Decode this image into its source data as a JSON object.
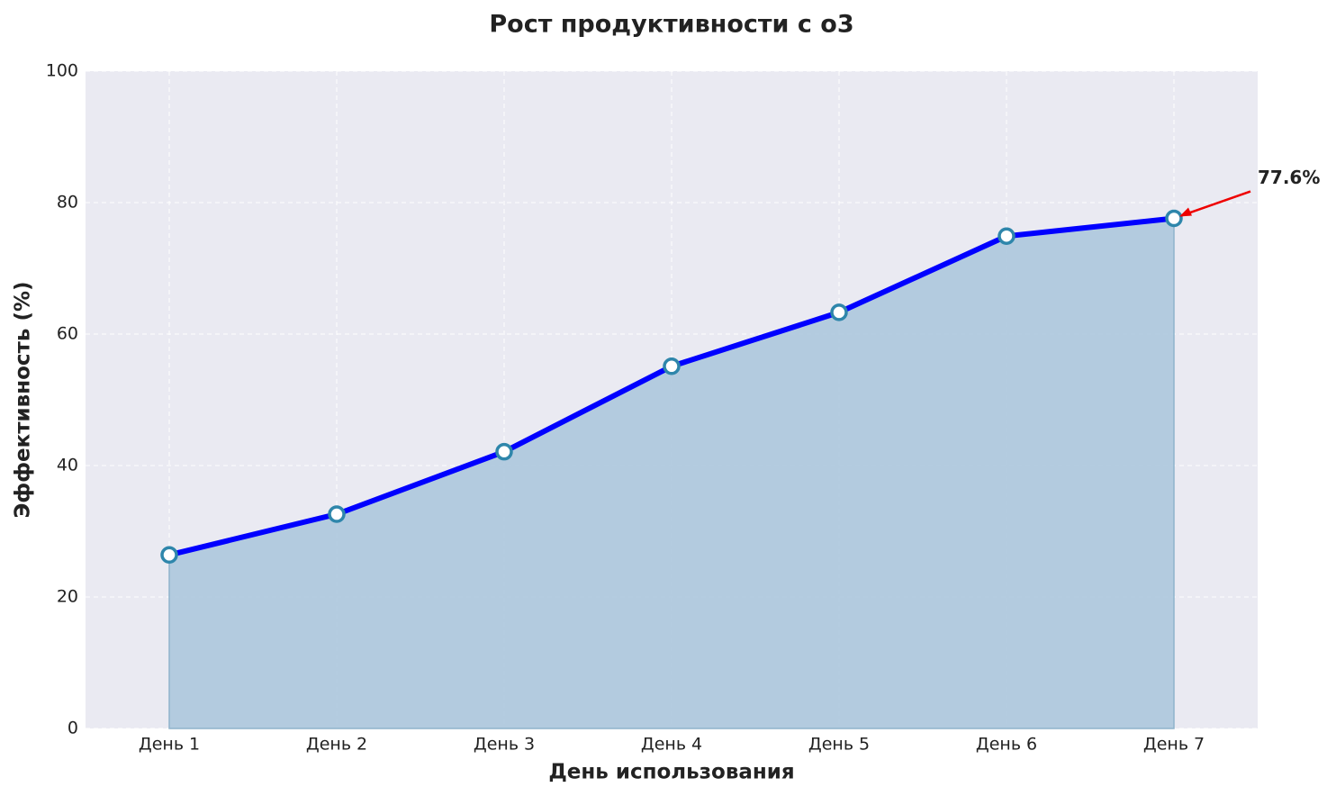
{
  "chart_data": {
    "type": "area-line",
    "title": "Рост продуктивности с o3",
    "xlabel": "День использования",
    "ylabel": "Эффективность (%)",
    "categories": [
      "День 1",
      "День 2",
      "День 3",
      "День 4",
      "День 5",
      "День 6",
      "День 7"
    ],
    "series": [
      {
        "color": "#0000ff",
        "marker_edge": "#2e86ab",
        "fill": "#a9c6dc",
        "values": [
          26.4,
          32.6,
          42.1,
          55.1,
          63.3,
          74.9,
          77.6
        ],
        "value_labels": [
          null,
          null,
          null,
          null,
          null,
          null,
          "77.6%"
        ]
      }
    ],
    "ylim": [
      0,
      100
    ],
    "yticks": [
      0,
      20,
      40,
      60,
      80,
      100
    ],
    "grid": true
  }
}
